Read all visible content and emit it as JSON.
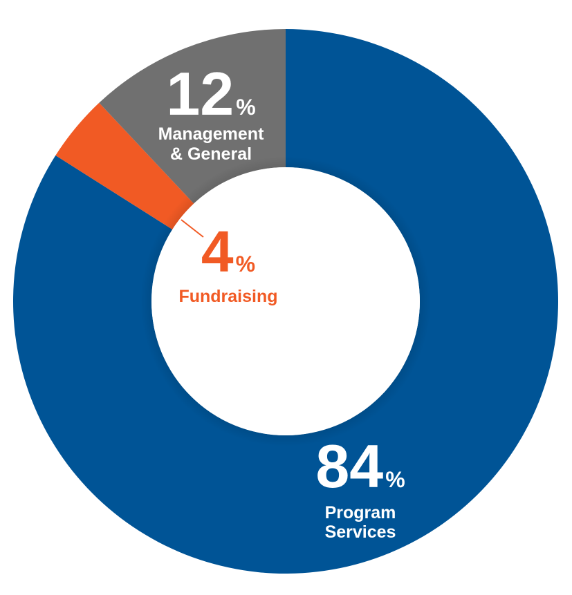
{
  "chart_data": {
    "type": "pie",
    "style": "donut",
    "series": [
      {
        "label_lines": [
          "Program",
          "Services"
        ],
        "value": 84,
        "value_text": "84",
        "unit": "%",
        "color": "#005496",
        "text_color": "#ffffff"
      },
      {
        "label_lines": [
          "Fundraising"
        ],
        "value": 4,
        "value_text": "4",
        "unit": "%",
        "color": "#f15a24",
        "text_color": "#f15a24"
      },
      {
        "label_lines": [
          "Management",
          "& General"
        ],
        "value": 12,
        "value_text": "12",
        "unit": "%",
        "color": "#707070",
        "text_color": "#ffffff"
      }
    ],
    "start_angle_deg": 0,
    "direction": "clockwise",
    "legend": "none"
  }
}
